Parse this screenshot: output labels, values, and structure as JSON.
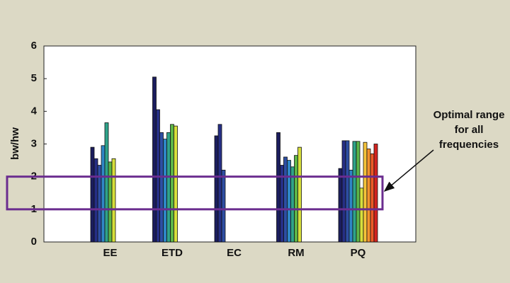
{
  "chart_data": {
    "type": "bar",
    "ylabel": "bw/hw",
    "categories": [
      "EE",
      "ETD",
      "EC",
      "RM",
      "PQ"
    ],
    "ylim": [
      0,
      6
    ],
    "yticks": [
      0,
      1,
      2,
      3,
      4,
      5,
      6
    ],
    "series": [
      {
        "color": "#1b1d5e",
        "values": [
          2.9,
          5.05,
          3.25,
          3.35,
          2.25
        ]
      },
      {
        "color": "#262f86",
        "values": [
          2.55,
          4.05,
          3.6,
          2.35,
          3.1
        ]
      },
      {
        "color": "#2d4ea3",
        "values": [
          2.35,
          3.35,
          2.2,
          2.6,
          3.1
        ]
      },
      {
        "color": "#2f86c6",
        "values": [
          2.95,
          3.15,
          0,
          2.5,
          2.2
        ]
      },
      {
        "color": "#2fa38a",
        "values": [
          3.65,
          3.35,
          0,
          2.3,
          3.08
        ]
      },
      {
        "color": "#5cb548",
        "values": [
          2.45,
          3.6,
          0,
          2.65,
          3.08
        ]
      },
      {
        "color": "#d7df3c",
        "values": [
          2.55,
          3.55,
          0,
          2.9,
          1.65
        ]
      },
      {
        "color": "#f5c33a",
        "values": [
          0,
          0,
          0,
          0,
          3.05
        ]
      },
      {
        "color": "#f3922e",
        "values": [
          0,
          0,
          0,
          0,
          2.85
        ]
      },
      {
        "color": "#ec5a27",
        "values": [
          0,
          0,
          0,
          0,
          2.7
        ]
      },
      {
        "color": "#d3231f",
        "values": [
          0,
          0,
          0,
          0,
          3.0
        ]
      }
    ],
    "optimal_range": [
      1,
      2
    ],
    "range_color": "#6b2d8f",
    "annotation": [
      "Optimal range",
      "for all",
      "frequencies"
    ]
  }
}
